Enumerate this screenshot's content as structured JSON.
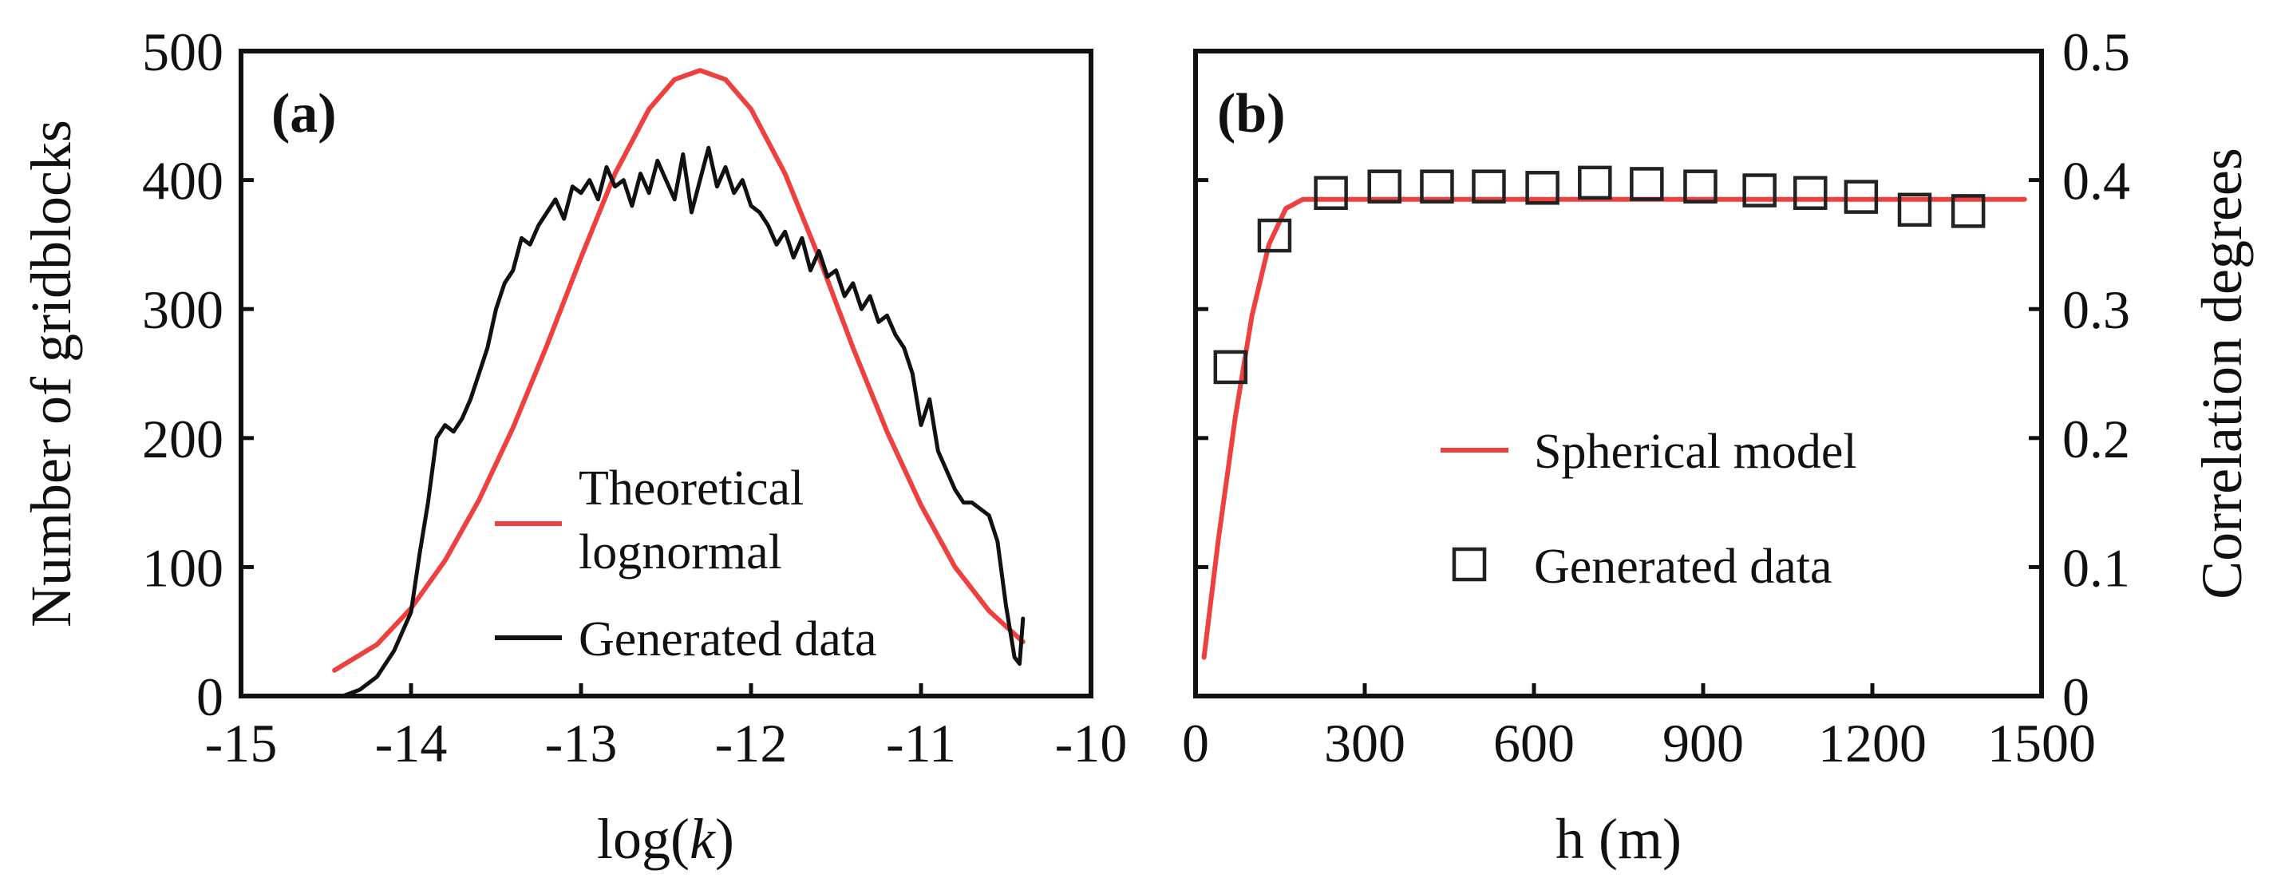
{
  "colors": {
    "theory": "#ef4040",
    "generated": "#111111",
    "frame": "#111111"
  },
  "chart_data": [
    {
      "type": "line",
      "panel_label": "(a)",
      "xlabel": "log(k)",
      "xlabel_prefix": "log(",
      "xlabel_var": "k",
      "xlabel_suffix": ")",
      "ylabel": "Number of gridblocks",
      "xlim": [
        -15,
        -10
      ],
      "ylim": [
        0,
        500
      ],
      "xticks": [
        -15,
        -14,
        -13,
        -12,
        -11,
        -10
      ],
      "yticks": [
        0,
        100,
        200,
        300,
        400,
        500
      ],
      "xtick_labels": [
        "-15",
        "-14",
        "-13",
        "-12",
        "-11",
        "-10"
      ],
      "ytick_labels": [
        "0",
        "100",
        "200",
        "300",
        "400",
        "500"
      ],
      "legend": {
        "position": "bottom-right",
        "entries": [
          "Theoretical",
          "lognormal",
          "Generated data"
        ]
      },
      "series": [
        {
          "name": "Theoretical lognormal",
          "style": "red-line",
          "x": [
            -14.45,
            -14.2,
            -14.0,
            -13.8,
            -13.6,
            -13.4,
            -13.2,
            -13.0,
            -12.8,
            -12.6,
            -12.45,
            -12.3,
            -12.15,
            -12.0,
            -11.8,
            -11.6,
            -11.4,
            -11.2,
            -11.0,
            -10.8,
            -10.6,
            -10.4
          ],
          "values": [
            20,
            40,
            68,
            105,
            152,
            208,
            272,
            340,
            405,
            455,
            478,
            485,
            478,
            455,
            405,
            340,
            270,
            205,
            148,
            100,
            66,
            42
          ]
        },
        {
          "name": "Generated data",
          "style": "black-line",
          "x": [
            -14.4,
            -14.3,
            -14.2,
            -14.1,
            -14.0,
            -13.95,
            -13.9,
            -13.85,
            -13.8,
            -13.75,
            -13.7,
            -13.65,
            -13.6,
            -13.55,
            -13.5,
            -13.45,
            -13.4,
            -13.35,
            -13.3,
            -13.25,
            -13.2,
            -13.15,
            -13.1,
            -13.05,
            -13.0,
            -12.95,
            -12.9,
            -12.85,
            -12.8,
            -12.75,
            -12.7,
            -12.65,
            -12.6,
            -12.55,
            -12.5,
            -12.45,
            -12.4,
            -12.35,
            -12.3,
            -12.25,
            -12.2,
            -12.15,
            -12.1,
            -12.05,
            -12.0,
            -11.95,
            -11.9,
            -11.85,
            -11.8,
            -11.75,
            -11.7,
            -11.65,
            -11.6,
            -11.55,
            -11.5,
            -11.45,
            -11.4,
            -11.35,
            -11.3,
            -11.25,
            -11.2,
            -11.15,
            -11.1,
            -11.05,
            -11.0,
            -10.95,
            -10.9,
            -10.85,
            -10.8,
            -10.75,
            -10.7,
            -10.65,
            -10.6,
            -10.55,
            -10.5,
            -10.45,
            -10.42,
            -10.4
          ],
          "values": [
            0,
            5,
            15,
            35,
            65,
            110,
            150,
            200,
            210,
            205,
            215,
            230,
            250,
            270,
            300,
            320,
            330,
            355,
            350,
            365,
            375,
            385,
            370,
            395,
            390,
            400,
            385,
            410,
            395,
            400,
            380,
            405,
            390,
            415,
            400,
            385,
            420,
            375,
            400,
            425,
            395,
            410,
            390,
            400,
            380,
            375,
            365,
            350,
            360,
            340,
            355,
            330,
            345,
            325,
            330,
            310,
            320,
            300,
            310,
            290,
            295,
            280,
            270,
            250,
            210,
            230,
            190,
            175,
            160,
            150,
            150,
            145,
            140,
            120,
            70,
            30,
            25,
            60
          ]
        }
      ]
    },
    {
      "type": "scatter",
      "panel_label": "(b)",
      "xlabel": "h (m)",
      "ylabel": "Correlation degrees",
      "xlim": [
        0,
        1500
      ],
      "ylim": [
        0,
        0.5
      ],
      "xticks": [
        0,
        300,
        600,
        900,
        1200,
        1500
      ],
      "yticks": [
        0,
        0.1,
        0.2,
        0.3,
        0.4,
        0.5
      ],
      "xtick_labels": [
        "0",
        "300",
        "600",
        "900",
        "1200",
        "1500"
      ],
      "ytick_labels": [
        "0",
        "0.1",
        "0.2",
        "0.3",
        "0.4",
        "0.5"
      ],
      "legend": {
        "position": "center-right",
        "entries": [
          "Spherical model",
          "Generated data"
        ]
      },
      "series": [
        {
          "name": "Spherical model",
          "style": "red-line",
          "x": [
            15,
            40,
            70,
            100,
            130,
            160,
            190,
            1470
          ],
          "values": [
            0.03,
            0.12,
            0.215,
            0.295,
            0.35,
            0.378,
            0.385,
            0.385
          ]
        },
        {
          "name": "Generated data",
          "style": "open-square",
          "x": [
            62,
            140,
            240,
            335,
            428,
            520,
            615,
            708,
            800,
            895,
            1000,
            1090,
            1180,
            1275,
            1370
          ],
          "values": [
            0.255,
            0.357,
            0.39,
            0.395,
            0.395,
            0.395,
            0.394,
            0.398,
            0.397,
            0.395,
            0.392,
            0.39,
            0.387,
            0.377,
            0.376
          ]
        }
      ]
    }
  ]
}
